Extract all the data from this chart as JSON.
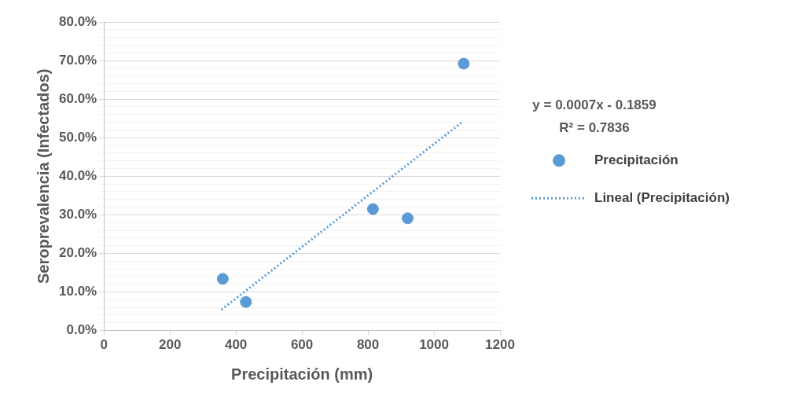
{
  "chart_data": {
    "type": "scatter",
    "xlabel": "Precipitación (mm)",
    "ylabel": "Seroprevalencia (Infectados)",
    "xlim": [
      0,
      1200
    ],
    "xticks": [
      0,
      200,
      400,
      600,
      800,
      1000,
      1200
    ],
    "ylim": [
      0,
      80
    ],
    "yticks": [
      {
        "value": 0,
        "label": "0.0%"
      },
      {
        "value": 2,
        "label": null
      },
      {
        "value": 4,
        "label": null
      },
      {
        "value": 6,
        "label": null
      },
      {
        "value": 8,
        "label": null
      },
      {
        "value": 10,
        "label": "10.0%"
      },
      {
        "value": 12,
        "label": null
      },
      {
        "value": 14,
        "label": null
      },
      {
        "value": 16,
        "label": null
      },
      {
        "value": 18,
        "label": null
      },
      {
        "value": 20,
        "label": "20.0%"
      },
      {
        "value": 22,
        "label": null
      },
      {
        "value": 24,
        "label": null
      },
      {
        "value": 26,
        "label": null
      },
      {
        "value": 28,
        "label": null
      },
      {
        "value": 30,
        "label": "30.0%"
      },
      {
        "value": 32,
        "label": null
      },
      {
        "value": 34,
        "label": null
      },
      {
        "value": 36,
        "label": null
      },
      {
        "value": 38,
        "label": null
      },
      {
        "value": 40,
        "label": "40.0%"
      },
      {
        "value": 42,
        "label": null
      },
      {
        "value": 44,
        "label": null
      },
      {
        "value": 46,
        "label": null
      },
      {
        "value": 48,
        "label": null
      },
      {
        "value": 50,
        "label": "50.0%"
      },
      {
        "value": 52,
        "label": null
      },
      {
        "value": 54,
        "label": null
      },
      {
        "value": 56,
        "label": null
      },
      {
        "value": 58,
        "label": null
      },
      {
        "value": 60,
        "label": "60.0%"
      },
      {
        "value": 62,
        "label": null
      },
      {
        "value": 64,
        "label": null
      },
      {
        "value": 66,
        "label": null
      },
      {
        "value": 68,
        "label": null
      },
      {
        "value": 70,
        "label": "70.0%"
      },
      {
        "value": 72,
        "label": null
      },
      {
        "value": 74,
        "label": null
      },
      {
        "value": 76,
        "label": null
      },
      {
        "value": 78,
        "label": null
      },
      {
        "value": 80,
        "label": "80.0%"
      }
    ],
    "grid": "y",
    "legend": "right",
    "marker": "circle",
    "series": [
      {
        "name": "Precipitación",
        "color": "#5b9bd5",
        "x": [
          360,
          430,
          815,
          920,
          1090
        ],
        "values": [
          13.4,
          7.4,
          31.5,
          29.1,
          69.2
        ]
      },
      {
        "name": "Lineal (Precipitación)",
        "type": "line",
        "line_style": "dotted",
        "marker": "none",
        "color": "#5b9bd5",
        "x": [
          356,
          1083
        ],
        "values": [
          5.4,
          53.9
        ]
      }
    ],
    "annotations": [
      "y = 0.0007x - 0.1859",
      "R² = 0.7836"
    ]
  }
}
